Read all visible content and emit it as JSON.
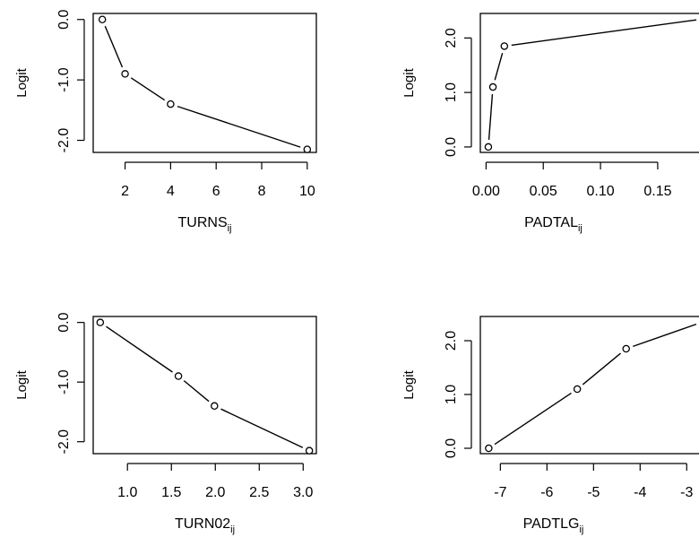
{
  "chart_data": [
    {
      "type": "line",
      "xlabel": "TURNS",
      "xlabel_sub": "ij",
      "ylabel": "Logit",
      "x": [
        1,
        2,
        4,
        10
      ],
      "y": [
        0.0,
        -0.9,
        -1.4,
        -2.15
      ],
      "xlim": [
        0.6,
        10.4
      ],
      "ylim": [
        -2.2,
        0.1
      ],
      "xticks": [
        2,
        4,
        6,
        8,
        10
      ],
      "xtick_labels": [
        "2",
        "4",
        "6",
        "8",
        "10"
      ],
      "yticks": [
        0,
        -1,
        -2
      ],
      "ytick_labels": [
        "0.0",
        "-1.0",
        "-2.0"
      ]
    },
    {
      "type": "line",
      "xlabel": "PADTAL",
      "xlabel_sub": "ij",
      "ylabel": "Logit",
      "x": [
        0.002,
        0.006,
        0.016,
        0.19
      ],
      "y": [
        0.0,
        1.1,
        1.85,
        2.35
      ],
      "xlim": [
        -0.005,
        0.19
      ],
      "ylim": [
        -0.1,
        2.45
      ],
      "xticks": [
        0.0,
        0.05,
        0.1,
        0.15
      ],
      "xtick_labels": [
        "0.00",
        "0.05",
        "0.10",
        "0.15"
      ],
      "yticks": [
        0,
        1,
        2
      ],
      "ytick_labels": [
        "0.0",
        "1.0",
        "2.0"
      ]
    },
    {
      "type": "line",
      "xlabel": "TURN02",
      "xlabel_sub": "ij",
      "ylabel": "Logit",
      "x": [
        0.69,
        1.58,
        1.99,
        3.07
      ],
      "y": [
        0.0,
        -0.9,
        -1.4,
        -2.15
      ],
      "xlim": [
        0.61,
        3.15
      ],
      "ylim": [
        -2.2,
        0.1
      ],
      "xticks": [
        1.0,
        1.5,
        2.0,
        2.5,
        3.0
      ],
      "xtick_labels": [
        "1.0",
        "1.5",
        "2.0",
        "2.5",
        "3.0"
      ],
      "yticks": [
        0,
        -1,
        -2
      ],
      "ytick_labels": [
        "0.0",
        "-1.0",
        "-2.0"
      ]
    },
    {
      "type": "line",
      "xlabel": "PADTLG",
      "xlabel_sub": "ij",
      "ylabel": "Logit",
      "x": [
        -7.25,
        -5.35,
        -4.3,
        -2.65
      ],
      "y": [
        0.0,
        1.1,
        1.85,
        2.35
      ],
      "xlim": [
        -7.43,
        -2.64
      ],
      "ylim": [
        -0.1,
        2.45
      ],
      "xticks": [
        -7,
        -6,
        -5,
        -4,
        -3
      ],
      "xtick_labels": [
        "-7",
        "-6",
        "-5",
        "-4",
        "-3"
      ],
      "yticks": [
        0,
        1,
        2
      ],
      "ytick_labels": [
        "0.0",
        "1.0",
        "2.0"
      ]
    }
  ]
}
